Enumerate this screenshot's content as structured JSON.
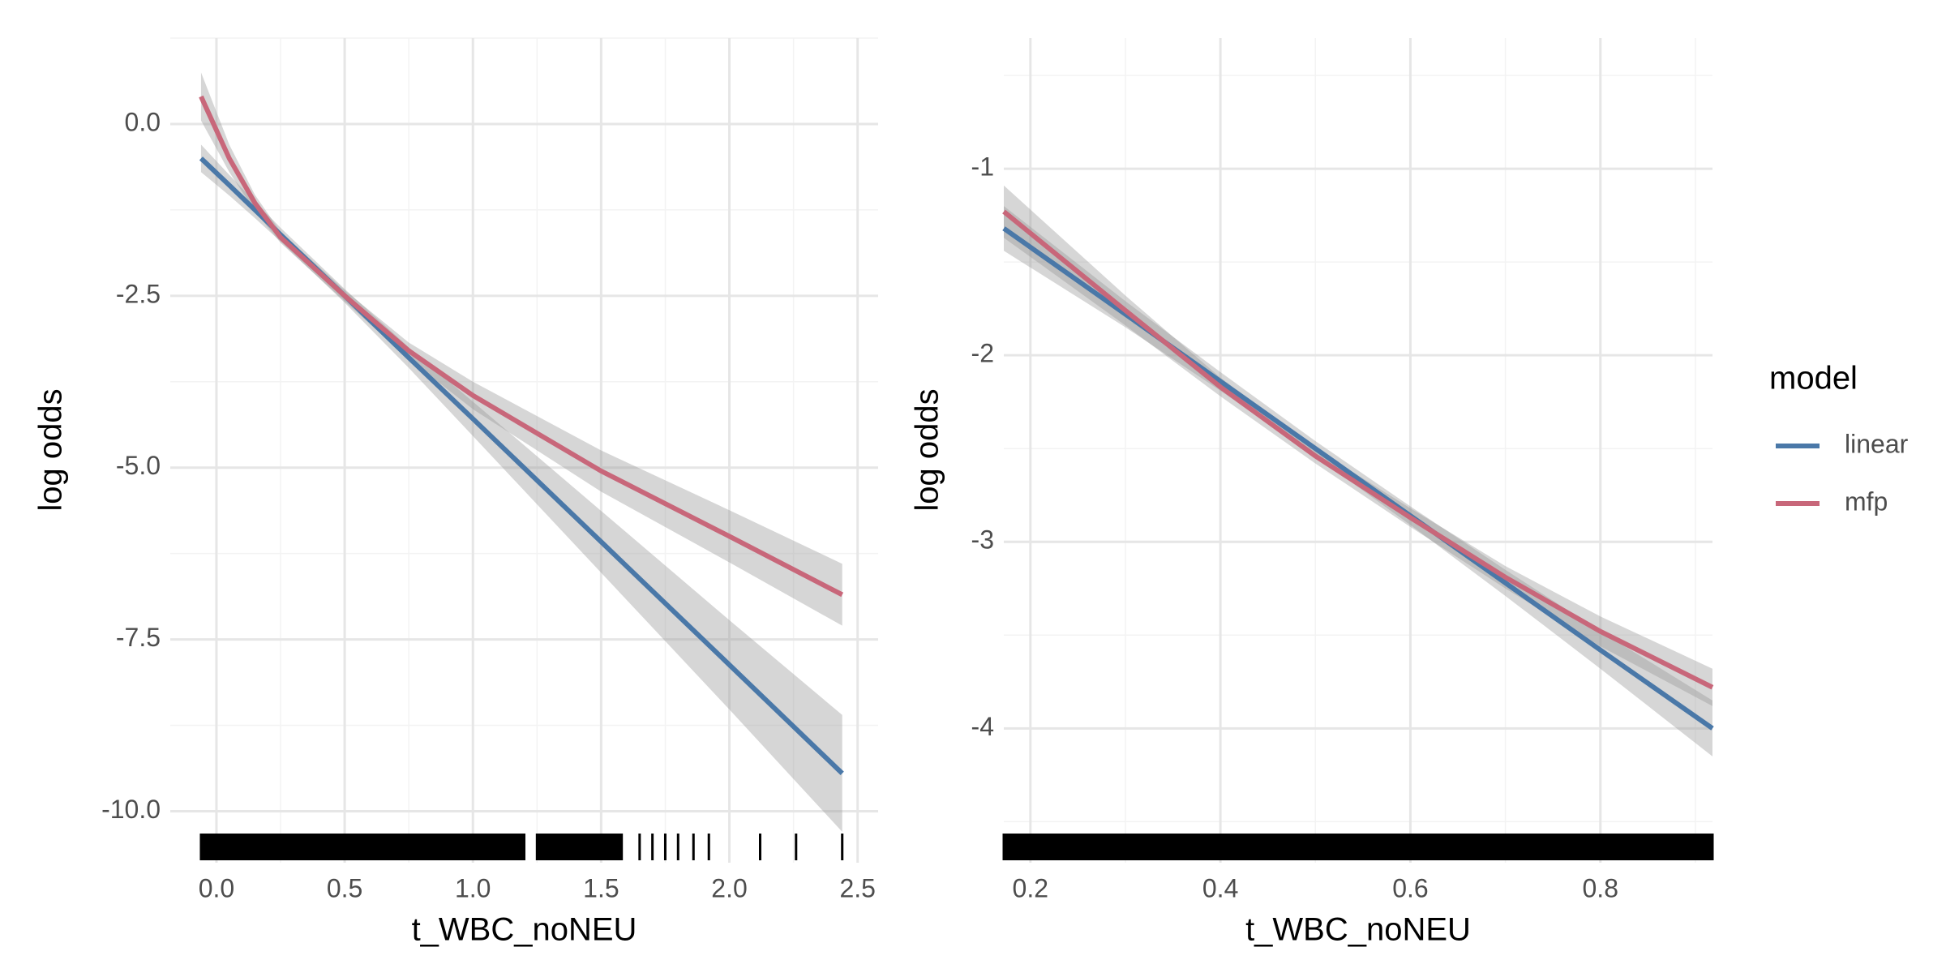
{
  "chart_data": [
    {
      "type": "line",
      "xlabel": "t_WBC_noNEU",
      "ylabel": "log odds",
      "xlim": [
        -0.18,
        2.58
      ],
      "ylim": [
        -10.75,
        1.25
      ],
      "xticks": [
        {
          "value": 0,
          "label": "0.0"
        },
        0.5,
        {
          "value": 1,
          "label": "1.0"
        },
        1.5,
        {
          "value": 2,
          "label": "2.0"
        },
        2.5
      ],
      "yticks": [
        {
          "value": 0,
          "label": "0.0"
        },
        -2.5,
        {
          "value": -5,
          "label": "-5.0"
        },
        -7.5,
        {
          "value": -10,
          "label": "-10.0"
        }
      ],
      "grid": true,
      "x": [
        -0.06,
        0.05,
        0.15,
        0.25,
        0.5,
        0.75,
        1.0,
        1.5,
        2.0,
        2.44
      ],
      "series": [
        {
          "name": "linear",
          "color": "#4a78a8",
          "values": [
            -0.5,
            -0.89,
            -1.25,
            -1.61,
            -2.5,
            -3.4,
            -4.29,
            -6.08,
            -7.87,
            -9.45
          ],
          "lower": [
            -0.7,
            -1.04,
            -1.37,
            -1.71,
            -2.6,
            -3.55,
            -4.54,
            -6.53,
            -8.52,
            -10.3
          ],
          "upper": [
            -0.3,
            -0.74,
            -1.13,
            -1.51,
            -2.4,
            -3.25,
            -4.04,
            -5.63,
            -7.22,
            -8.6
          ]
        },
        {
          "name": "mfp",
          "color": "#c8677a",
          "values": [
            0.4,
            -0.5,
            -1.15,
            -1.65,
            -2.5,
            -3.3,
            -3.95,
            -5.05,
            -6.0,
            -6.85
          ],
          "lower": [
            0.05,
            -0.7,
            -1.27,
            -1.73,
            -2.58,
            -3.42,
            -4.15,
            -5.35,
            -6.38,
            -7.3
          ],
          "upper": [
            0.75,
            -0.3,
            -1.03,
            -1.57,
            -2.42,
            -3.18,
            -3.75,
            -4.75,
            -5.62,
            -6.4
          ]
        }
      ],
      "rug": [
        -0.06,
        -0.04,
        -0.02,
        0,
        0.02,
        0.04,
        0.06,
        0.08,
        0.1,
        0.12,
        0.14,
        0.16,
        0.18,
        0.2,
        0.22,
        0.24,
        0.26,
        0.28,
        0.3,
        0.32,
        0.34,
        0.36,
        0.38,
        0.4,
        0.42,
        0.44,
        0.46,
        0.48,
        0.5,
        0.52,
        0.54,
        0.56,
        0.58,
        0.6,
        0.62,
        0.64,
        0.66,
        0.68,
        0.7,
        0.72,
        0.74,
        0.76,
        0.78,
        0.8,
        0.82,
        0.84,
        0.86,
        0.88,
        0.9,
        0.92,
        0.94,
        0.96,
        0.98,
        1.0,
        1.02,
        1.04,
        1.06,
        1.08,
        1.1,
        1.12,
        1.14,
        1.16,
        1.18,
        1.2,
        1.25,
        1.28,
        1.32,
        1.35,
        1.38,
        1.42,
        1.45,
        1.48,
        1.52,
        1.55,
        1.58,
        1.65,
        1.7,
        1.75,
        1.8,
        1.86,
        1.92,
        2.12,
        2.26,
        2.44
      ]
    },
    {
      "type": "line",
      "xlabel": "t_WBC_noNEU",
      "ylabel": "log odds",
      "xlim": [
        0.172,
        0.918
      ],
      "ylim": [
        -4.72,
        -0.3
      ],
      "xticks": [
        0.2,
        0.4,
        0.6,
        0.8
      ],
      "yticks": [
        -1,
        -2,
        -3,
        -4
      ],
      "grid": true,
      "legend": {
        "title": "model",
        "position": "right"
      },
      "x": [
        0.172,
        0.3,
        0.4,
        0.5,
        0.6,
        0.7,
        0.8,
        0.918
      ],
      "series": [
        {
          "name": "linear",
          "color": "#4a78a8",
          "values": [
            -1.32,
            -1.78,
            -2.14,
            -2.5,
            -2.86,
            -3.22,
            -3.58,
            -4.0
          ],
          "lower": [
            -1.44,
            -1.85,
            -2.19,
            -2.54,
            -2.91,
            -3.29,
            -3.68,
            -4.15
          ],
          "upper": [
            -1.2,
            -1.71,
            -2.09,
            -2.46,
            -2.81,
            -3.15,
            -3.48,
            -3.85
          ]
        },
        {
          "name": "mfp",
          "color": "#c8677a",
          "values": [
            -1.23,
            -1.76,
            -2.17,
            -2.54,
            -2.87,
            -3.19,
            -3.48,
            -3.78
          ],
          "lower": [
            -1.37,
            -1.84,
            -2.22,
            -2.58,
            -2.92,
            -3.25,
            -3.56,
            -3.88
          ],
          "upper": [
            -1.09,
            -1.68,
            -2.12,
            -2.5,
            -2.82,
            -3.13,
            -3.4,
            -3.68
          ]
        }
      ],
      "rug": [
        0.172,
        0.18,
        0.19,
        0.2,
        0.21,
        0.22,
        0.23,
        0.24,
        0.25,
        0.26,
        0.27,
        0.28,
        0.29,
        0.3,
        0.31,
        0.32,
        0.33,
        0.34,
        0.35,
        0.36,
        0.37,
        0.38,
        0.39,
        0.4,
        0.41,
        0.42,
        0.43,
        0.44,
        0.45,
        0.46,
        0.47,
        0.48,
        0.49,
        0.5,
        0.51,
        0.52,
        0.53,
        0.54,
        0.55,
        0.56,
        0.57,
        0.58,
        0.59,
        0.6,
        0.61,
        0.62,
        0.63,
        0.64,
        0.65,
        0.66,
        0.67,
        0.68,
        0.69,
        0.7,
        0.71,
        0.72,
        0.73,
        0.74,
        0.75,
        0.76,
        0.77,
        0.78,
        0.79,
        0.8,
        0.81,
        0.82,
        0.83,
        0.84,
        0.85,
        0.86,
        0.87,
        0.88,
        0.89,
        0.9,
        0.91,
        0.918
      ]
    }
  ]
}
